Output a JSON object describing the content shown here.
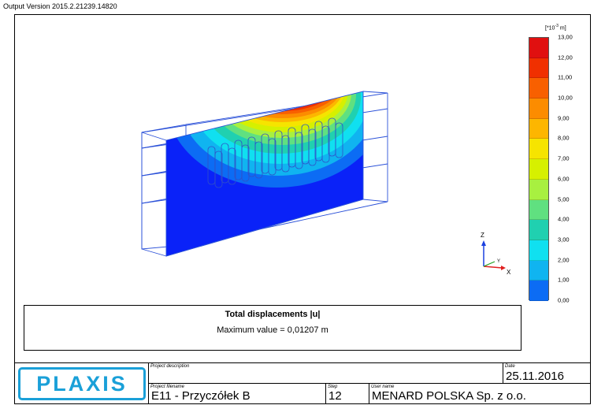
{
  "header": {
    "version": "Output Version 2015.2.21239.14820"
  },
  "legend": {
    "unit_prefix": "[*10",
    "unit_exp": "-3",
    "unit_suffix": " m]",
    "labels": [
      "13,00",
      "12,00",
      "11,00",
      "10,00",
      "9,00",
      "8,00",
      "7,00",
      "6,00",
      "5,00",
      "4,00",
      "3,00",
      "2,00",
      "1,00",
      "0,00"
    ],
    "colors": [
      "#e01010",
      "#f03000",
      "#f86000",
      "#fc8c00",
      "#fdb600",
      "#f6e400",
      "#d6f000",
      "#a8f040",
      "#60e080",
      "#20d0b0",
      "#10e0f0",
      "#10b4f0",
      "#0c6cf4",
      "#0a22f8"
    ]
  },
  "axes": {
    "z": "Z",
    "y": "Y",
    "x": "X"
  },
  "result": {
    "title": "Total displacements |u|",
    "max_text": "Maximum value = 0,01207 m"
  },
  "footer": {
    "logo": "PLAXIS",
    "project_description_label": "Project description",
    "project_description": "",
    "date_label": "Date",
    "date": "25.11.2016",
    "project_filename_label": "Project filename",
    "project_filename": "E11 - Przyczółek B",
    "step_label": "Step",
    "step": "12",
    "user_name_label": "User name",
    "user_name": "MENARD POLSKA Sp. z o.o."
  }
}
